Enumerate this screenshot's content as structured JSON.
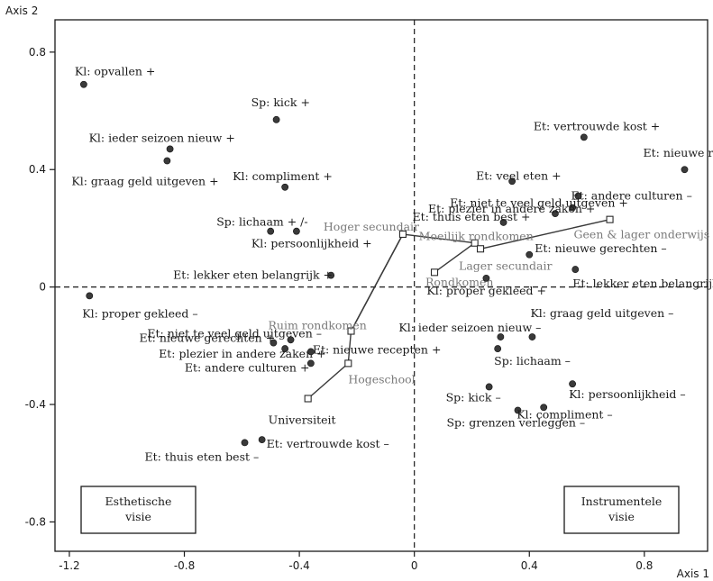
{
  "chart_data": {
    "type": "scatter",
    "xlabel": "Axis 1",
    "ylabel": "Axis 2",
    "xlim": [
      -1.25,
      1.02
    ],
    "ylim": [
      -0.9,
      0.91
    ],
    "xticks": [
      {
        "v": -1.2,
        "t": "-1.2"
      },
      {
        "v": -0.8,
        "t": "-0.8"
      },
      {
        "v": -0.4,
        "t": "-0.4"
      },
      {
        "v": 0,
        "t": "0"
      },
      {
        "v": 0.4,
        "t": "0.4"
      },
      {
        "v": 0.8,
        "t": "0.8"
      }
    ],
    "yticks": [
      {
        "v": 0.8,
        "t": "0.8"
      },
      {
        "v": 0.4,
        "t": "0.4"
      },
      {
        "v": 0,
        "t": "0"
      },
      {
        "v": -0.4,
        "t": "-0.4"
      },
      {
        "v": -0.8,
        "t": "-0.8"
      }
    ],
    "points": [
      {
        "x": -1.15,
        "y": 0.69,
        "label": "Kl: opvallen +"
      },
      {
        "x": -0.48,
        "y": 0.57,
        "label": "Sp: kick +"
      },
      {
        "x": -0.85,
        "y": 0.47,
        "label": "Kl: ieder seizoen nieuw +"
      },
      {
        "x": -0.86,
        "y": 0.43,
        "label": "Kl: graag geld uitgeven +"
      },
      {
        "x": -0.45,
        "y": 0.34,
        "label": "Kl:  compliment +"
      },
      {
        "x": -0.5,
        "y": 0.19,
        "label": "Sp: lichaam + /-"
      },
      {
        "x": -0.41,
        "y": 0.19,
        "label": "Kl: persoonlijkheid +"
      },
      {
        "x": -0.29,
        "y": 0.04,
        "label": "Et: lekker eten belangrijk +"
      },
      {
        "x": -1.13,
        "y": -0.03,
        "label": "Kl: proper gekleed –"
      },
      {
        "x": -0.49,
        "y": -0.19,
        "label": "Et: niet te veel geld uitgeven –"
      },
      {
        "x": -0.43,
        "y": -0.18,
        "label": "Et: nieuwe gerechten +"
      },
      {
        "x": -0.45,
        "y": -0.21,
        "label": "Et: plezier in andere zaken +"
      },
      {
        "x": -0.36,
        "y": -0.22,
        "label": "Et: nieuwe recepten +"
      },
      {
        "x": -0.36,
        "y": -0.26,
        "label": "Et: andere culturen +"
      },
      {
        "x": -0.59,
        "y": -0.53,
        "label": "Et: thuis eten best –"
      },
      {
        "x": -0.53,
        "y": -0.52,
        "label": "Et: vertrouwde kost –"
      },
      {
        "x": 0.59,
        "y": 0.51,
        "label": "Et: vertrouwde kost +"
      },
      {
        "x": 0.94,
        "y": 0.4,
        "label": "Et: nieuwe recepten –"
      },
      {
        "x": 0.34,
        "y": 0.36,
        "label": "Et: veel eten +"
      },
      {
        "x": 0.57,
        "y": 0.31,
        "label": "Et: andere culturen –"
      },
      {
        "x": 0.55,
        "y": 0.27,
        "label": "Et: niet te veel geld uitgeven +"
      },
      {
        "x": 0.49,
        "y": 0.25,
        "label": "Et: plezier in andere zaken +"
      },
      {
        "x": 0.31,
        "y": 0.22,
        "label": "Et: thuis eten best +"
      },
      {
        "x": 0.4,
        "y": 0.11,
        "label": "Et: nieuwe gerechten –"
      },
      {
        "x": 0.56,
        "y": 0.06,
        "label": "Et: lekker eten belangrijk –"
      },
      {
        "x": 0.25,
        "y": 0.03,
        "label": "Kl: proper gekleed +"
      },
      {
        "x": 0.3,
        "y": -0.17,
        "label": "Kl: ieder seizoen nieuw –"
      },
      {
        "x": 0.41,
        "y": -0.17,
        "label": "Kl: graag geld uitgeven –"
      },
      {
        "x": 0.29,
        "y": -0.21,
        "label": "Sp: lichaam –"
      },
      {
        "x": 0.26,
        "y": -0.34,
        "label": "Sp: kick –"
      },
      {
        "x": 0.55,
        "y": -0.33,
        "label": "Kl: persoonlijkheid –"
      },
      {
        "x": 0.36,
        "y": -0.42,
        "label": "Sp: grenzen verleggen –"
      },
      {
        "x": 0.45,
        "y": -0.41,
        "label": "Kl: compliment –"
      }
    ],
    "trajectories": [
      {
        "points": [
          {
            "x": -0.37,
            "y": -0.38,
            "label": "Universiteit"
          },
          {
            "x": -0.23,
            "y": -0.26,
            "label": "Hogeschool"
          },
          {
            "x": -0.22,
            "y": -0.15,
            "label": "Ruim rondkomen"
          },
          {
            "x": -0.04,
            "y": 0.18,
            "label": "Hoger secundair"
          },
          {
            "x": 0.21,
            "y": 0.15,
            "label": "Moeilijk rondkomen"
          },
          {
            "x": 0.23,
            "y": 0.13,
            "label": "Lager secundair"
          },
          {
            "x": 0.68,
            "y": 0.23,
            "label": "Geen & lager onderwijs"
          }
        ]
      },
      {
        "points": [
          {
            "x": -0.04,
            "y": 0.18
          },
          {
            "x": -0.22,
            "y": -0.15
          }
        ]
      },
      {
        "points": [
          {
            "x": 0.07,
            "y": 0.05,
            "label": "Rondkomen"
          },
          {
            "x": 0.21,
            "y": 0.15
          }
        ]
      }
    ],
    "boxes": [
      {
        "lines": [
          "Esthetische",
          "visie"
        ],
        "quadrant": "bottom-left"
      },
      {
        "lines": [
          "Instrumentele",
          "visie"
        ],
        "quadrant": "bottom-right"
      }
    ]
  }
}
